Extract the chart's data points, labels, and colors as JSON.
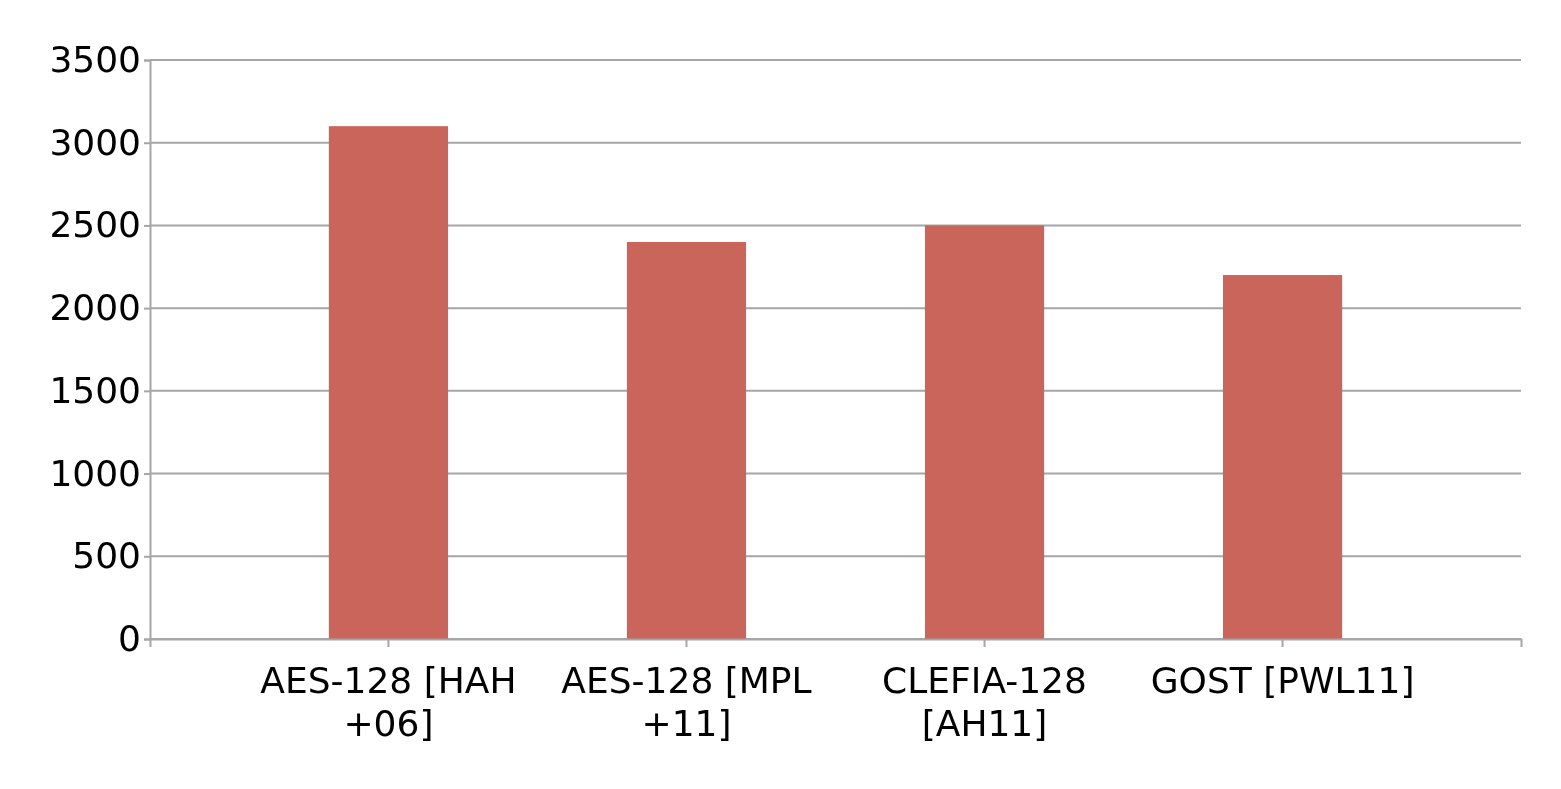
{
  "chart_data": {
    "type": "bar",
    "categories": [
      "AES-128 [HAH +06]",
      "AES-128 [MPL +11]",
      "CLEFIA-128 [AH11]",
      "GOST [PWL11]"
    ],
    "values": [
      3100,
      2400,
      2500,
      2200
    ],
    "color": "#c9655a",
    "ylim": [
      0,
      3500
    ],
    "yticks": [
      0,
      500,
      1000,
      1500,
      2000,
      2500,
      3000,
      3500
    ],
    "grid": "y"
  }
}
